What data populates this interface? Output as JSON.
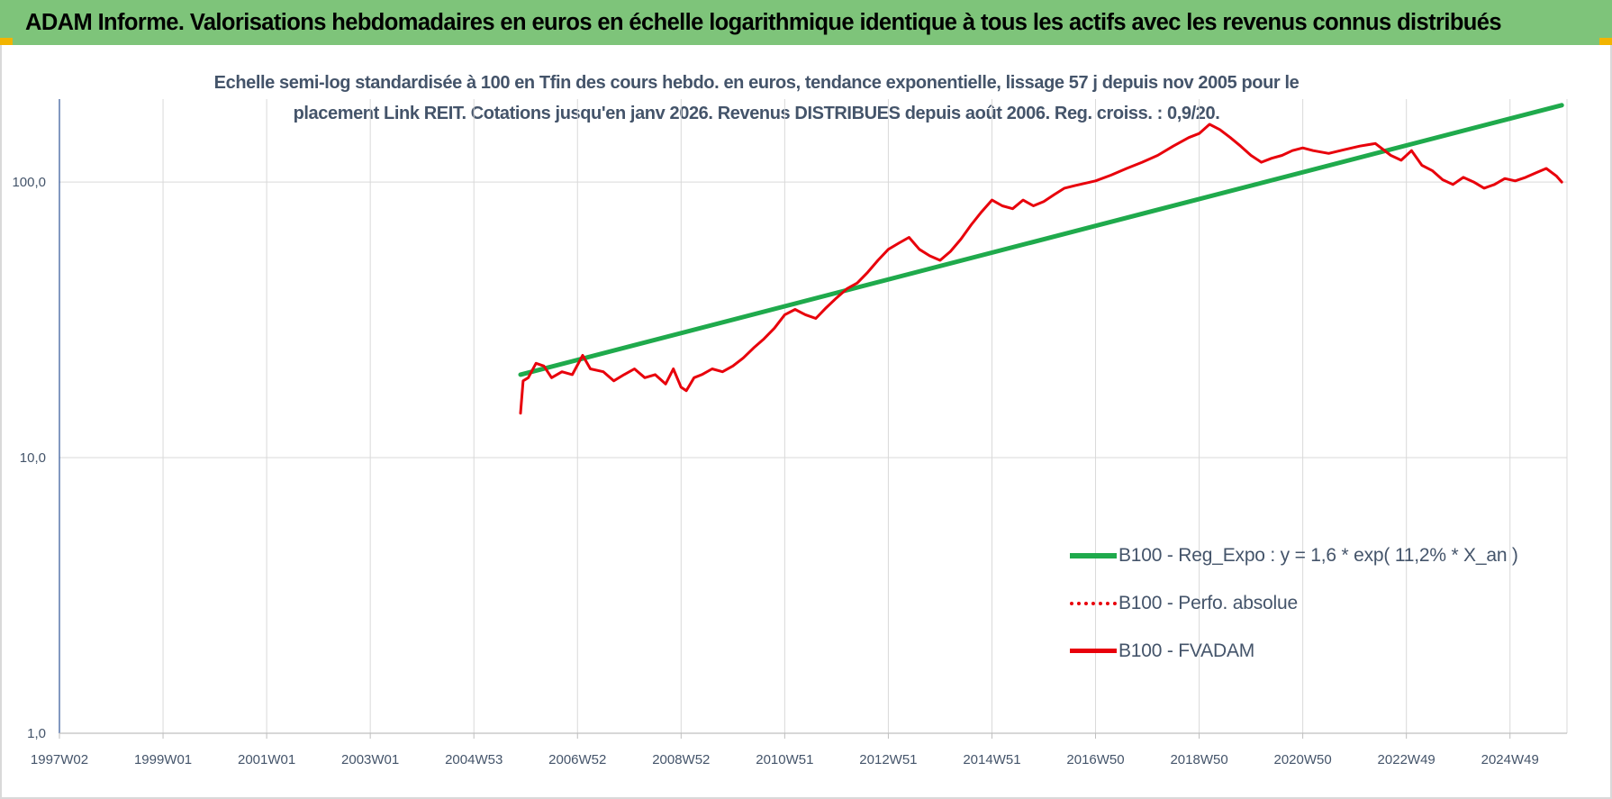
{
  "banner_title": "ADAM Informe. Valorisations hebdomadaires en euros en échelle logarithmique identique à tous les actifs avec les revenus connus distribués",
  "colors": {
    "banner": "#7ec47a",
    "corner": "#f2b400",
    "regression": "#1faa4c",
    "fvadam": "#e8000b",
    "perfo": "#e8000b",
    "text": "#44546a",
    "grid": "#d9d9d9"
  },
  "chart_data": {
    "type": "line",
    "title_line1": "Echelle semi-log standardisée à 100 en Tfin des cours hebdo. en euros, tendance exponentielle, lissage 57 j depuis nov 2005 pour le",
    "title_line2": "placement Link REIT. Cotations jusqu'en janv 2026. Revenus DISTRIBUES depuis août 2006. Reg. croiss. : 0,9/20.",
    "y_scale": "log",
    "ylim": [
      1,
      200
    ],
    "y_ticks": [
      {
        "value": 1,
        "label": "1,0"
      },
      {
        "value": 10,
        "label": "10,0"
      },
      {
        "value": 100,
        "label": "100,0"
      }
    ],
    "xlim": [
      1997.0,
      2026.1
    ],
    "x_ticks": [
      {
        "value": 1997.0,
        "label": "1997W02"
      },
      {
        "value": 1999.0,
        "label": "1999W01"
      },
      {
        "value": 2001.0,
        "label": "2001W01"
      },
      {
        "value": 2003.0,
        "label": "2003W01"
      },
      {
        "value": 2005.0,
        "label": "2004W53"
      },
      {
        "value": 2007.0,
        "label": "2006W52"
      },
      {
        "value": 2009.0,
        "label": "2008W52"
      },
      {
        "value": 2011.0,
        "label": "2010W51"
      },
      {
        "value": 2013.0,
        "label": "2012W51"
      },
      {
        "value": 2015.0,
        "label": "2014W51"
      },
      {
        "value": 2017.0,
        "label": "2016W50"
      },
      {
        "value": 2019.0,
        "label": "2018W50"
      },
      {
        "value": 2021.0,
        "label": "2020W50"
      },
      {
        "value": 2023.0,
        "label": "2022W49"
      },
      {
        "value": 2025.0,
        "label": "2024W49"
      }
    ],
    "grid": true,
    "legend_position": "right",
    "series": [
      {
        "name": "B100 - Reg_Expo : y = 1,6 * exp( 11,2% *  X_an )",
        "style": "solid-thick",
        "x": [
          2005.9,
          2026.0
        ],
        "y": [
          20.0,
          190.0
        ]
      },
      {
        "name": "B100 - Perfo. absolue",
        "style": "dotted",
        "x": [],
        "y": []
      },
      {
        "name": "B100 - FVADAM",
        "style": "solid",
        "x": [
          2005.9,
          2005.95,
          2006.05,
          2006.2,
          2006.35,
          2006.5,
          2006.7,
          2006.9,
          2007.1,
          2007.25,
          2007.5,
          2007.7,
          2007.9,
          2008.1,
          2008.3,
          2008.5,
          2008.7,
          2008.85,
          2009.0,
          2009.1,
          2009.25,
          2009.4,
          2009.6,
          2009.8,
          2010.0,
          2010.2,
          2010.4,
          2010.6,
          2010.8,
          2011.0,
          2011.2,
          2011.4,
          2011.6,
          2011.8,
          2012.0,
          2012.2,
          2012.4,
          2012.6,
          2012.8,
          2013.0,
          2013.2,
          2013.4,
          2013.6,
          2013.8,
          2014.0,
          2014.2,
          2014.4,
          2014.6,
          2014.8,
          2015.0,
          2015.2,
          2015.4,
          2015.6,
          2015.8,
          2016.0,
          2016.2,
          2016.4,
          2016.6,
          2016.8,
          2017.0,
          2017.3,
          2017.6,
          2017.9,
          2018.2,
          2018.5,
          2018.8,
          2019.0,
          2019.2,
          2019.4,
          2019.6,
          2019.8,
          2020.0,
          2020.2,
          2020.4,
          2020.6,
          2020.8,
          2021.0,
          2021.2,
          2021.5,
          2021.8,
          2022.1,
          2022.4,
          2022.7,
          2022.9,
          2023.1,
          2023.3,
          2023.5,
          2023.7,
          2023.9,
          2024.1,
          2024.3,
          2024.5,
          2024.7,
          2024.9,
          2025.1,
          2025.3,
          2025.5,
          2025.7,
          2025.9,
          2026.0
        ],
        "y": [
          14.5,
          19.0,
          19.5,
          22.0,
          21.5,
          19.5,
          20.5,
          20.0,
          23.5,
          21.0,
          20.5,
          19.0,
          20.0,
          21.0,
          19.5,
          20.0,
          18.5,
          21.0,
          18.0,
          17.5,
          19.5,
          20.0,
          21.0,
          20.5,
          21.5,
          23.0,
          25.0,
          27.0,
          29.5,
          33.0,
          34.5,
          33.0,
          32.0,
          35.0,
          38.0,
          41.0,
          43.0,
          47.0,
          52.0,
          57.0,
          60.0,
          63.0,
          57.0,
          54.0,
          52.0,
          56.0,
          62.0,
          70.0,
          78.0,
          86.0,
          82.0,
          80.0,
          86.0,
          82.0,
          85.0,
          90.0,
          95.0,
          97.0,
          99.0,
          101.0,
          106.0,
          112.0,
          118.0,
          125.0,
          135.0,
          145.0,
          150.0,
          162.0,
          155.0,
          145.0,
          135.0,
          125.0,
          118.0,
          122.0,
          125.0,
          130.0,
          133.0,
          130.0,
          127.0,
          131.0,
          135.0,
          138.0,
          125.0,
          120.0,
          130.0,
          115.0,
          110.0,
          102.0,
          98.0,
          104.0,
          100.0,
          95.0,
          98.0,
          103.0,
          101.0,
          104.0,
          108.0,
          112.0,
          105.0,
          100.0
        ]
      }
    ]
  }
}
